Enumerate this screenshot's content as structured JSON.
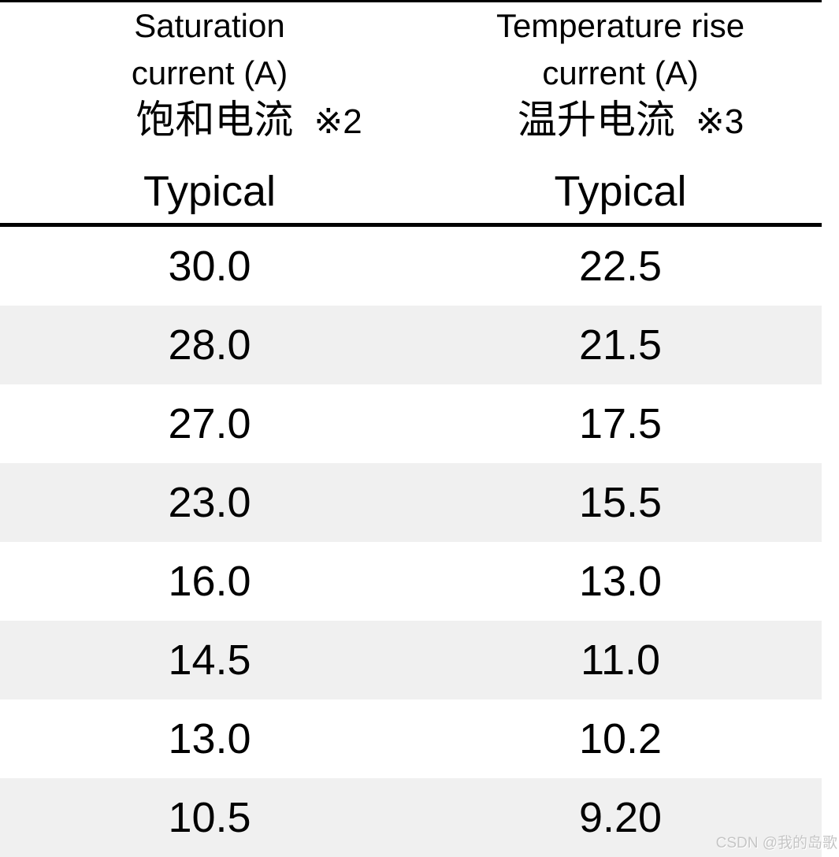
{
  "header": {
    "col1": {
      "line1": "Saturation",
      "line2": "current (A)",
      "line3_cn": "饱和电流",
      "note": "※2",
      "sub": "Typical"
    },
    "col2": {
      "line1": "Temperature rise",
      "line2": "current (A)",
      "line3_cn": "温升电流",
      "note": "※3",
      "sub": "Typical"
    }
  },
  "rows": [
    [
      "30.0",
      "22.5"
    ],
    [
      "28.0",
      "21.5"
    ],
    [
      "27.0",
      "17.5"
    ],
    [
      "23.0",
      "15.5"
    ],
    [
      "16.0",
      "13.0"
    ],
    [
      "14.5",
      "11.0"
    ],
    [
      "13.0",
      "10.2"
    ],
    [
      "10.5",
      "9.20"
    ]
  ],
  "watermark": "CSDN @我的岛歌",
  "colors": {
    "row_stripe": "#f0f0f0",
    "rule_line": "#000000",
    "watermark_text": "#c6c6c6"
  },
  "chart_data": {
    "type": "table",
    "columns": [
      "Saturation current (A) 饱和电流 ※2 (Typical)",
      "Temperature rise current (A) 温升电流 ※3 (Typical)"
    ],
    "rows": [
      [
        30.0,
        22.5
      ],
      [
        28.0,
        21.5
      ],
      [
        27.0,
        17.5
      ],
      [
        23.0,
        15.5
      ],
      [
        16.0,
        13.0
      ],
      [
        14.5,
        11.0
      ],
      [
        13.0,
        10.2
      ],
      [
        10.5,
        9.2
      ]
    ]
  }
}
